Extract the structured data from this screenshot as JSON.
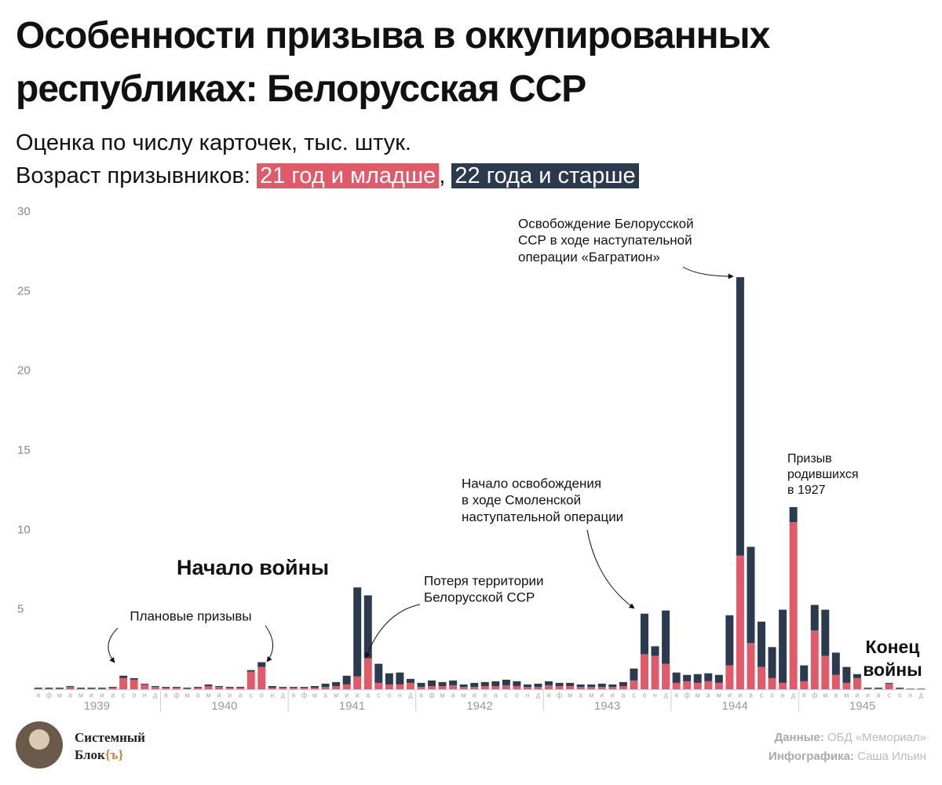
{
  "chart_data": {
    "type": "stacked_bar",
    "title": "Особенности призыва в оккупированных республиках: Белорусская ССР",
    "subtitle": "Оценка по числу карточек, тыс. штук.",
    "legend_title": "Возраст призывников:",
    "legend_separator": ",",
    "categories": [
      "я",
      "ф",
      "м",
      "а",
      "м",
      "и",
      "и",
      "а",
      "с",
      "о",
      "н",
      "д",
      "я",
      "ф",
      "м",
      "а",
      "м",
      "и",
      "и",
      "а",
      "с",
      "о",
      "н",
      "д",
      "я",
      "ф",
      "м",
      "а",
      "м",
      "и",
      "и",
      "а",
      "с",
      "о",
      "н",
      "д",
      "я",
      "ф",
      "м",
      "а",
      "м",
      "и",
      "и",
      "а",
      "с",
      "о",
      "н",
      "д",
      "я",
      "ф",
      "м",
      "а",
      "м",
      "и",
      "и",
      "а",
      "с",
      "о",
      "н",
      "д",
      "я",
      "ф",
      "м",
      "а",
      "м",
      "и",
      "и",
      "а",
      "с",
      "о",
      "н",
      "д",
      "я",
      "ф",
      "м",
      "а",
      "м",
      "и",
      "и",
      "а",
      "с",
      "о",
      "н",
      "д"
    ],
    "year_labels": [
      "1939",
      "1940",
      "1941",
      "1942",
      "1943",
      "1944",
      "1945"
    ],
    "series": [
      {
        "name": "21 год и младше",
        "color": "#e05a6a",
        "values": [
          0.05,
          0.05,
          0.05,
          0.15,
          0.05,
          0.05,
          0.05,
          0.1,
          0.7,
          0.6,
          0.3,
          0.15,
          0.1,
          0.1,
          0.05,
          0.1,
          0.2,
          0.15,
          0.1,
          0.1,
          1.1,
          1.4,
          0.1,
          0.1,
          0.1,
          0.1,
          0.1,
          0.15,
          0.2,
          0.3,
          0.8,
          1.95,
          0.4,
          0.3,
          0.3,
          0.4,
          0.15,
          0.2,
          0.2,
          0.25,
          0.15,
          0.15,
          0.2,
          0.2,
          0.25,
          0.2,
          0.15,
          0.15,
          0.25,
          0.2,
          0.2,
          0.15,
          0.15,
          0.15,
          0.15,
          0.2,
          0.55,
          2.2,
          2.1,
          1.6,
          0.4,
          0.5,
          0.4,
          0.5,
          0.4,
          1.5,
          8.4,
          2.9,
          1.4,
          0.7,
          0.4,
          10.5,
          0.5,
          3.7,
          2.1,
          0.9,
          0.4,
          0.7,
          0.05,
          0.05,
          0.35,
          0.05,
          0.05,
          0.05
        ]
      },
      {
        "name": "22 года и старше",
        "color": "#2b3a4f",
        "values": [
          0.05,
          0.05,
          0.05,
          0.05,
          0.05,
          0.05,
          0.05,
          0.05,
          0.15,
          0.1,
          0.05,
          0.05,
          0.05,
          0.05,
          0.05,
          0.05,
          0.1,
          0.05,
          0.05,
          0.05,
          0.1,
          0.3,
          0.1,
          0.05,
          0.05,
          0.05,
          0.1,
          0.2,
          0.25,
          0.55,
          5.6,
          3.95,
          1.2,
          0.7,
          0.75,
          0.25,
          0.25,
          0.35,
          0.25,
          0.3,
          0.15,
          0.25,
          0.25,
          0.3,
          0.35,
          0.3,
          0.15,
          0.2,
          0.25,
          0.2,
          0.2,
          0.15,
          0.15,
          0.2,
          0.15,
          0.25,
          0.75,
          2.55,
          0.6,
          3.35,
          0.65,
          0.4,
          0.55,
          0.5,
          0.5,
          3.15,
          17.5,
          6.05,
          2.85,
          1.95,
          4.6,
          0.95,
          1.0,
          1.6,
          2.9,
          1.4,
          1.0,
          0.25,
          0.05,
          0.05,
          0.05,
          0.05,
          0,
          0
        ]
      }
    ],
    "ylim": [
      0,
      30
    ],
    "yticks": [
      5,
      10,
      15,
      20,
      25,
      30
    ],
    "grid": false,
    "annotations": [
      {
        "lines": [
          "Плановые призывы"
        ]
      },
      {
        "lines": [
          "Начало войны"
        ]
      },
      {
        "lines": [
          "Потеря территории",
          "Белорусской ССР"
        ]
      },
      {
        "lines": [
          "Начало освобождения",
          "в ходе Смоленской",
          "наступательной операции"
        ]
      },
      {
        "lines": [
          "Освобождение Белорусской",
          "ССР в ходе наступательной",
          "операции «Багратион»"
        ]
      },
      {
        "lines": [
          "Призыв",
          "родившихся",
          "в 1927"
        ]
      },
      {
        "lines": [
          "Конец",
          "войны"
        ]
      }
    ]
  },
  "footer": {
    "logo": [
      "Системный",
      "Блок",
      "{ъ}"
    ],
    "source_label": "Данные:",
    "source": "ОБД «Мемориал»",
    "credit_label": "Инфографика:",
    "credit": "Саша Ильин"
  }
}
